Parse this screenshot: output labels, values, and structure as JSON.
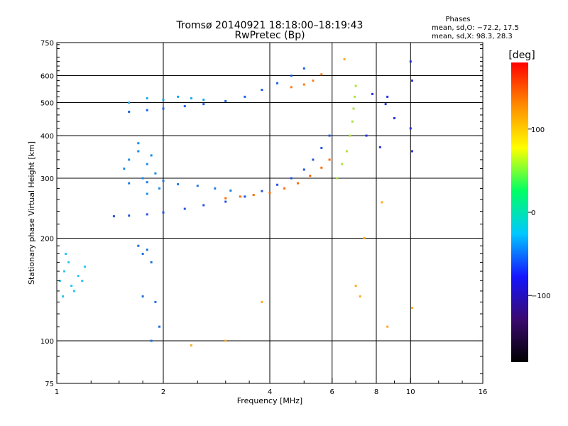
{
  "chart_data": {
    "type": "scatter",
    "title": "Tromsø 20140921 18:18:00–18:19:43",
    "subtitle": "RwPretec (Bp)",
    "xlabel": "Frequency [MHz]",
    "ylabel": "Stationary phase Virtual Height [km]",
    "x_scale": "log2",
    "y_scale": "log",
    "xlim": [
      1,
      16
    ],
    "ylim": [
      75,
      750
    ],
    "x_ticks": [
      1,
      2,
      4,
      6,
      8,
      10,
      16
    ],
    "y_ticks": [
      75,
      100,
      200,
      300,
      400,
      500,
      600,
      750
    ],
    "grid": true,
    "stats": {
      "header": "Phases",
      "line_o": "mean, sd,O: −72.2, 17.5",
      "line_x": "mean, sd,X:  98.3, 28.3"
    },
    "colorbar": {
      "label": "[deg]",
      "range": [
        -180,
        180
      ],
      "ticks": [
        100,
        0,
        -100
      ],
      "tick_labels": [
        "100",
        "0",
        "−100"
      ],
      "colors": [
        "#000000",
        "#3a0a70",
        "#1414ff",
        "#00c8ff",
        "#00ff64",
        "#ffff00",
        "#ff8c00",
        "#ff0000"
      ]
    },
    "series": [
      {
        "group": "f-layer-o-trace",
        "color": "#2255dd",
        "x": [
          1.45,
          1.6,
          1.8,
          2.0,
          2.3,
          2.6,
          3.0,
          3.4,
          3.8,
          4.2,
          4.6,
          5.0,
          5.3,
          5.6,
          5.9
        ],
        "y": [
          232,
          233,
          235,
          238,
          244,
          250,
          256,
          265,
          275,
          287,
          300,
          318,
          340,
          368,
          400
        ]
      },
      {
        "group": "f-layer-x-trace",
        "color": "#ff6a00",
        "x": [
          3.0,
          3.3,
          3.6,
          4.0,
          4.4,
          4.8,
          5.2,
          5.6,
          5.9
        ],
        "y": [
          262,
          265,
          268,
          272,
          280,
          290,
          305,
          322,
          340
        ]
      },
      {
        "group": "f-layer-x-cusp",
        "color": "#b0e040",
        "x": [
          6.2,
          6.4,
          6.6,
          6.75,
          6.85,
          6.9,
          6.95,
          7.0
        ],
        "y": [
          300,
          330,
          360,
          400,
          440,
          480,
          520,
          560
        ]
      },
      {
        "group": "lower-multipath",
        "color": "#1e7ce0",
        "x": [
          1.6,
          1.8,
          2.0,
          2.2,
          2.5,
          2.8,
          3.1
        ],
        "y": [
          290,
          292,
          295,
          288,
          285,
          280,
          276
        ]
      },
      {
        "group": "second-hop-trace",
        "color": "#1560e8",
        "x": [
          1.6,
          1.8,
          2.0,
          2.3,
          2.6,
          3.0,
          3.4,
          3.8,
          4.2,
          4.6,
          5.0
        ],
        "y": [
          470,
          475,
          480,
          488,
          495,
          505,
          520,
          545,
          570,
          600,
          630
        ]
      },
      {
        "group": "second-hop-x",
        "color": "#ff7a1a",
        "x": [
          4.6,
          5.0,
          5.3,
          5.6
        ],
        "y": [
          555,
          565,
          580,
          605
        ]
      },
      {
        "group": "second-hop-spread",
        "color": "#18a8f0",
        "x": [
          1.6,
          1.8,
          2.0,
          2.2,
          2.4,
          2.6
        ],
        "y": [
          500,
          515,
          510,
          520,
          515,
          510
        ]
      },
      {
        "group": "f-spread-cluster",
        "color": "#1a8ae8",
        "x": [
          1.55,
          1.6,
          1.7,
          1.75,
          1.8,
          1.85,
          1.9,
          1.95,
          1.7,
          1.8
        ],
        "y": [
          320,
          340,
          360,
          300,
          330,
          350,
          310,
          280,
          380,
          270
        ]
      },
      {
        "group": "low-height-echoes",
        "color": "#2ec4f0",
        "x": [
          1.02,
          1.05,
          1.08,
          1.1,
          1.15,
          1.2,
          1.04,
          1.12,
          1.06,
          1.18
        ],
        "y": [
          150,
          160,
          170,
          145,
          155,
          165,
          135,
          140,
          180,
          150
        ]
      },
      {
        "group": "e-layer-echoes",
        "color": "#1e70d8",
        "x": [
          1.7,
          1.75,
          1.8,
          1.85,
          1.9,
          1.95,
          1.75,
          1.85
        ],
        "y": [
          190,
          180,
          185,
          170,
          130,
          110,
          135,
          100
        ]
      },
      {
        "group": "scattered-echoes",
        "color": "#2233dd",
        "x": [
          10.0,
          10.1,
          10.0,
          10.1,
          8.2,
          8.5,
          8.6,
          7.5,
          7.8,
          9.0
        ],
        "y": [
          660,
          580,
          420,
          360,
          370,
          495,
          520,
          400,
          530,
          450
        ]
      },
      {
        "group": "scattered-x-echoes",
        "color": "#ffaa22",
        "x": [
          10.1,
          8.6,
          8.3,
          7.0,
          7.2,
          3.0,
          3.8,
          2.4,
          6.5,
          7.4
        ],
        "y": [
          125,
          110,
          255,
          145,
          135,
          100,
          130,
          97,
          670,
          200
        ]
      }
    ]
  }
}
